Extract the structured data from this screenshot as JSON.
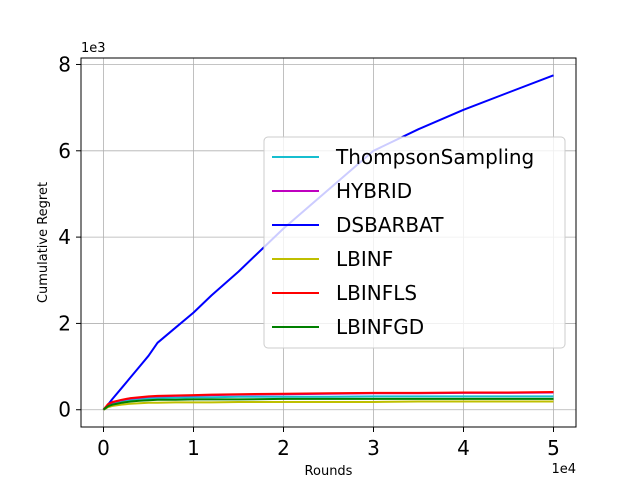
{
  "chart_data": {
    "type": "line",
    "title": "",
    "xlabel": "Rounds",
    "ylabel": "Cumulative Regret",
    "x_offset_label": "1e4",
    "y_offset_label": "1e3",
    "xlim": [
      -0.25,
      5.25
    ],
    "ylim": [
      -0.4,
      8.15
    ],
    "xticks": [
      0,
      1,
      2,
      3,
      4,
      5
    ],
    "xtick_labels": [
      "0",
      "1",
      "2",
      "3",
      "4",
      "5"
    ],
    "yticks": [
      0,
      2,
      4,
      6,
      8
    ],
    "ytick_labels": [
      "0",
      "2",
      "4",
      "6",
      "8"
    ],
    "grid": true,
    "legend_position": "center-right",
    "x": [
      0,
      0.05,
      0.1,
      0.2,
      0.3,
      0.4,
      0.5,
      0.6,
      0.8,
      1.0,
      1.2,
      1.5,
      2.0,
      2.5,
      3.0,
      3.5,
      4.0,
      4.5,
      5.0
    ],
    "series": [
      {
        "name": "ThompsonSampling",
        "color": "#17becf",
        "values": [
          0,
          0.1,
          0.15,
          0.2,
          0.23,
          0.25,
          0.26,
          0.27,
          0.28,
          0.29,
          0.29,
          0.3,
          0.3,
          0.3,
          0.31,
          0.31,
          0.31,
          0.31,
          0.31
        ]
      },
      {
        "name": "HYBRID",
        "color": "#bf00bf",
        "values": [
          0,
          0.12,
          0.17,
          0.22,
          0.26,
          0.28,
          0.3,
          0.31,
          0.32,
          0.33,
          0.34,
          0.35,
          0.36,
          0.37,
          0.38,
          0.38,
          0.39,
          0.39,
          0.4
        ]
      },
      {
        "name": "DSBARBAT",
        "color": "#0000ff",
        "values": [
          0,
          0.12,
          0.25,
          0.5,
          0.75,
          1.0,
          1.25,
          1.55,
          1.9,
          2.25,
          2.65,
          3.2,
          4.2,
          5.1,
          6.0,
          6.5,
          6.95,
          7.35,
          7.75
        ]
      },
      {
        "name": "LBINF",
        "color": "#bfbf00",
        "values": [
          0,
          0.06,
          0.09,
          0.12,
          0.14,
          0.15,
          0.16,
          0.16,
          0.17,
          0.17,
          0.17,
          0.18,
          0.18,
          0.18,
          0.18,
          0.19,
          0.19,
          0.19,
          0.19
        ]
      },
      {
        "name": "LBINFLS",
        "color": "#ff0000",
        "values": [
          0,
          0.13,
          0.18,
          0.23,
          0.27,
          0.29,
          0.31,
          0.32,
          0.33,
          0.34,
          0.35,
          0.36,
          0.37,
          0.38,
          0.39,
          0.39,
          0.4,
          0.4,
          0.41
        ]
      },
      {
        "name": "LBINFGD",
        "color": "#008000",
        "values": [
          0,
          0.08,
          0.12,
          0.16,
          0.19,
          0.21,
          0.22,
          0.23,
          0.23,
          0.24,
          0.24,
          0.24,
          0.25,
          0.25,
          0.25,
          0.25,
          0.25,
          0.25,
          0.25
        ]
      }
    ]
  }
}
